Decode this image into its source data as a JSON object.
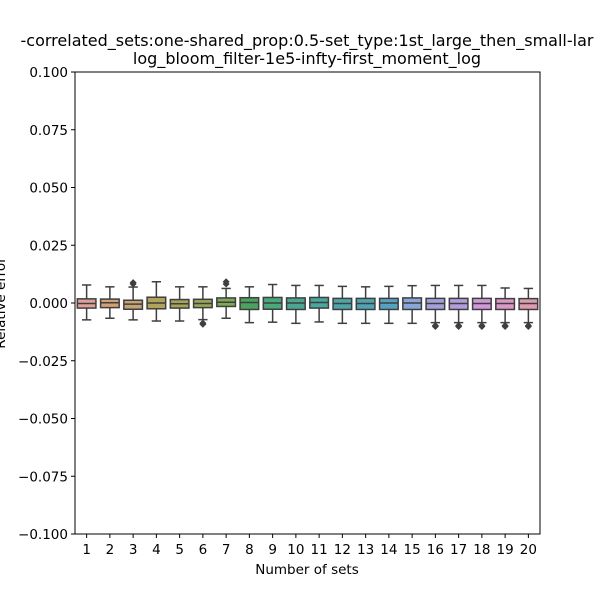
{
  "chart_data": {
    "type": "box",
    "title_lines": [
      "-correlated_sets:one-shared_prop:0.5-set_type:1st_large_then_small-lar",
      "log_bloom_filter-1e5-infty-first_moment_log"
    ],
    "xlabel": "Number of sets",
    "ylabel": "Relative error",
    "ylim": [
      -0.1,
      0.1
    ],
    "yticks": [
      -0.1,
      -0.075,
      -0.05,
      -0.025,
      0.0,
      0.025,
      0.05,
      0.075,
      0.1
    ],
    "ytick_labels": [
      "−0.100",
      "−0.075",
      "−0.050",
      "−0.025",
      "0.000",
      "0.025",
      "0.050",
      "0.075",
      "0.100"
    ],
    "categories": [
      "1",
      "2",
      "3",
      "4",
      "5",
      "6",
      "7",
      "8",
      "9",
      "10",
      "11",
      "12",
      "13",
      "14",
      "15",
      "16",
      "17",
      "18",
      "19",
      "20"
    ],
    "boxes": [
      {
        "category": "1",
        "whislo": -0.0073,
        "q1": -0.0022,
        "med": -0.0002,
        "q3": 0.0018,
        "whishi": 0.0078,
        "fliers": [],
        "color": "#e1a097"
      },
      {
        "category": "2",
        "whislo": -0.0066,
        "q1": -0.002,
        "med": 0.0001,
        "q3": 0.0017,
        "whishi": 0.007,
        "fliers": [],
        "color": "#d4a075"
      },
      {
        "category": "3",
        "whislo": -0.0073,
        "q1": -0.0027,
        "med": -0.0005,
        "q3": 0.0012,
        "whishi": 0.0069,
        "fliers": [
          0.0088,
          0.0082
        ],
        "color": "#c6a374"
      },
      {
        "category": "4",
        "whislo": -0.0078,
        "q1": -0.0025,
        "med": 0.0,
        "q3": 0.0025,
        "whishi": 0.0092,
        "fliers": [],
        "color": "#b0a35a"
      },
      {
        "category": "5",
        "whislo": -0.0078,
        "q1": -0.0022,
        "med": -0.0003,
        "q3": 0.0015,
        "whishi": 0.007,
        "fliers": [],
        "color": "#a4a357"
      },
      {
        "category": "6",
        "whislo": -0.0072,
        "q1": -0.002,
        "med": -0.0002,
        "q3": 0.0016,
        "whishi": 0.007,
        "fliers": [
          -0.0087,
          -0.0092
        ],
        "color": "#96a857"
      },
      {
        "category": "7",
        "whislo": -0.0066,
        "q1": -0.0015,
        "med": 0.0003,
        "q3": 0.0022,
        "whishi": 0.0063,
        "fliers": [
          0.0082,
          0.0092
        ],
        "color": "#7fa957"
      },
      {
        "category": "8",
        "whislo": -0.0085,
        "q1": -0.0028,
        "med": 0.0002,
        "q3": 0.0023,
        "whishi": 0.007,
        "fliers": [],
        "color": "#4aa45d"
      },
      {
        "category": "9",
        "whislo": -0.0083,
        "q1": -0.0027,
        "med": 0.0,
        "q3": 0.0024,
        "whishi": 0.008,
        "fliers": [],
        "color": "#4aa87d"
      },
      {
        "category": "10",
        "whislo": -0.0088,
        "q1": -0.0028,
        "med": 0.0,
        "q3": 0.0022,
        "whishi": 0.0076,
        "fliers": [],
        "color": "#4aa892"
      },
      {
        "category": "11",
        "whislo": -0.0082,
        "q1": -0.0022,
        "med": 0.0002,
        "q3": 0.0024,
        "whishi": 0.0076,
        "fliers": [],
        "color": "#4aa79f"
      },
      {
        "category": "12",
        "whislo": -0.0088,
        "q1": -0.0028,
        "med": -0.0002,
        "q3": 0.002,
        "whishi": 0.0072,
        "fliers": [],
        "color": "#4ca6a9"
      },
      {
        "category": "13",
        "whislo": -0.0088,
        "q1": -0.0028,
        "med": -0.0002,
        "q3": 0.002,
        "whishi": 0.007,
        "fliers": [],
        "color": "#4fa4b4"
      },
      {
        "category": "14",
        "whislo": -0.0088,
        "q1": -0.0028,
        "med": 0.0,
        "q3": 0.002,
        "whishi": 0.0072,
        "fliers": [],
        "color": "#56a2c1"
      },
      {
        "category": "15",
        "whislo": -0.0088,
        "q1": -0.0028,
        "med": 0.0,
        "q3": 0.0022,
        "whishi": 0.0075,
        "fliers": [],
        "color": "#8aa5d9"
      },
      {
        "category": "16",
        "whislo": -0.0085,
        "q1": -0.0028,
        "med": -0.0002,
        "q3": 0.002,
        "whishi": 0.0076,
        "fliers": [
          -0.0098,
          -0.0102
        ],
        "color": "#a3a1dc"
      },
      {
        "category": "17",
        "whislo": -0.0085,
        "q1": -0.0028,
        "med": -0.0002,
        "q3": 0.002,
        "whishi": 0.0076,
        "fliers": [
          -0.0098,
          -0.0102
        ],
        "color": "#b49ddc"
      },
      {
        "category": "18",
        "whislo": -0.0085,
        "q1": -0.0028,
        "med": -0.0002,
        "q3": 0.002,
        "whishi": 0.0076,
        "fliers": [
          -0.0098,
          -0.0102
        ],
        "color": "#d199d9"
      },
      {
        "category": "19",
        "whislo": -0.0085,
        "q1": -0.0028,
        "med": -0.0002,
        "q3": 0.0019,
        "whishi": 0.0065,
        "fliers": [
          -0.0098,
          -0.0102
        ],
        "color": "#dc98c6"
      },
      {
        "category": "20",
        "whislo": -0.0085,
        "q1": -0.0028,
        "med": -0.0002,
        "q3": 0.0019,
        "whishi": 0.0063,
        "fliers": [
          -0.0098,
          -0.0102
        ],
        "color": "#df9bb0"
      }
    ],
    "grid": false,
    "legend": "none"
  }
}
